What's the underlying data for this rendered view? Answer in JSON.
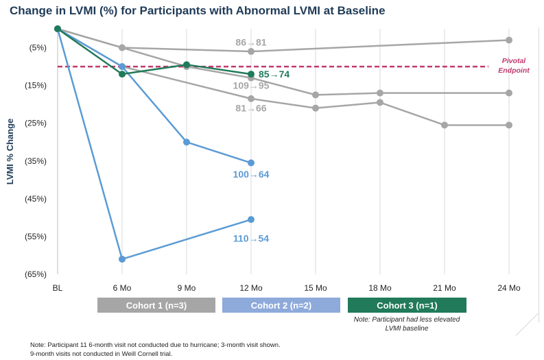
{
  "title": "Change in LVMI (%) for Participants with Abnormal LVMI at Baseline",
  "colors": {
    "cohort1": "#a6a6a6",
    "cohort2": "#8eaadb",
    "cohort3": "#217a5a",
    "gray_series": "#a6a6a6",
    "blue_series": "#5b9bd5",
    "green_series": "#217a5a",
    "pivotal": "#c0396e",
    "grid": "#d9d9d9"
  },
  "chart_data": {
    "type": "line",
    "title": "Change in LVMI (%) for Participants with Abnormal LVMI at Baseline",
    "xlabel": "",
    "ylabel": "LVMI % Change",
    "x_categories": [
      "BL",
      "6 Mo",
      "9 Mo",
      "12 Mo",
      "15 Mo",
      "18 Mo",
      "21 Mo",
      "24 Mo"
    ],
    "y_ticks": [
      "(5%)",
      "(15%)",
      "(25%)",
      "(35%)",
      "(45%)",
      "(55%)",
      "(65%)"
    ],
    "ylim": [
      -65,
      0
    ],
    "grid": "vertical",
    "reference_line": {
      "label": "Pivotal Endpoint",
      "label_line1": "Pivotal",
      "label_line2": "Endpoint",
      "y": -10
    },
    "series": [
      {
        "color_key": "gray_series",
        "points": [
          [
            "BL",
            0
          ],
          [
            "6 Mo",
            -5
          ],
          [
            "12 Mo",
            -6
          ],
          [
            "24 Mo",
            -3
          ]
        ]
      },
      {
        "color_key": "gray_series",
        "points": [
          [
            "BL",
            0
          ],
          [
            "9 Mo",
            -10
          ],
          [
            "12 Mo",
            -13
          ],
          [
            "15 Mo",
            -17.5
          ],
          [
            "18 Mo",
            -17
          ],
          [
            "24 Mo",
            -17
          ]
        ]
      },
      {
        "color_key": "gray_series",
        "points": [
          [
            "BL",
            0
          ],
          [
            "6 Mo",
            -10
          ],
          [
            "12 Mo",
            -18.5
          ],
          [
            "15 Mo",
            -21
          ],
          [
            "18 Mo",
            -19.5
          ],
          [
            "21 Mo",
            -25.5
          ],
          [
            "24 Mo",
            -25.5
          ]
        ]
      },
      {
        "color_key": "blue_series",
        "points": [
          [
            "BL",
            0
          ],
          [
            "6 Mo",
            -10
          ],
          [
            "9 Mo",
            -30
          ],
          [
            "12 Mo",
            -35.5
          ]
        ]
      },
      {
        "color_key": "blue_series",
        "points": [
          [
            "BL",
            0
          ],
          [
            "6 Mo",
            -61
          ],
          [
            "12 Mo",
            -50.5
          ]
        ]
      },
      {
        "color_key": "green_series",
        "points": [
          [
            "BL",
            0
          ],
          [
            "6 Mo",
            -12
          ],
          [
            "9 Mo",
            -9.5
          ],
          [
            "12 Mo",
            -12
          ]
        ]
      }
    ],
    "annotations": [
      {
        "text": "86→81",
        "color_key": "gray_series",
        "x": "12 Mo",
        "y": -3.5
      },
      {
        "text": "85→74",
        "color_key": "green_series",
        "x": "12 Mo",
        "y": -12
      },
      {
        "text": "109→95",
        "color_key": "gray_series",
        "x": "12 Mo",
        "y": -15
      },
      {
        "text": "81→66",
        "color_key": "gray_series",
        "x": "12 Mo",
        "y": -21
      },
      {
        "text": "100→64",
        "color_key": "blue_series",
        "x": "12 Mo",
        "y": -38.5
      },
      {
        "text": "110→54",
        "color_key": "blue_series",
        "x": "12 Mo",
        "y": -55.5
      }
    ]
  },
  "cohorts": [
    {
      "label": "Cohort 1 (n=3)"
    },
    {
      "label": "Cohort 2 (n=2)"
    },
    {
      "label": "Cohort 3 (n=1)"
    }
  ],
  "cohort_note": "Note: Participant had less elevated LVMI baseline",
  "footnotes": [
    "Note: Participant 11 6-month visit not conducted due to hurricane; 3-month visit shown.",
    "9-month visits not conducted in Weill Cornell trial."
  ]
}
